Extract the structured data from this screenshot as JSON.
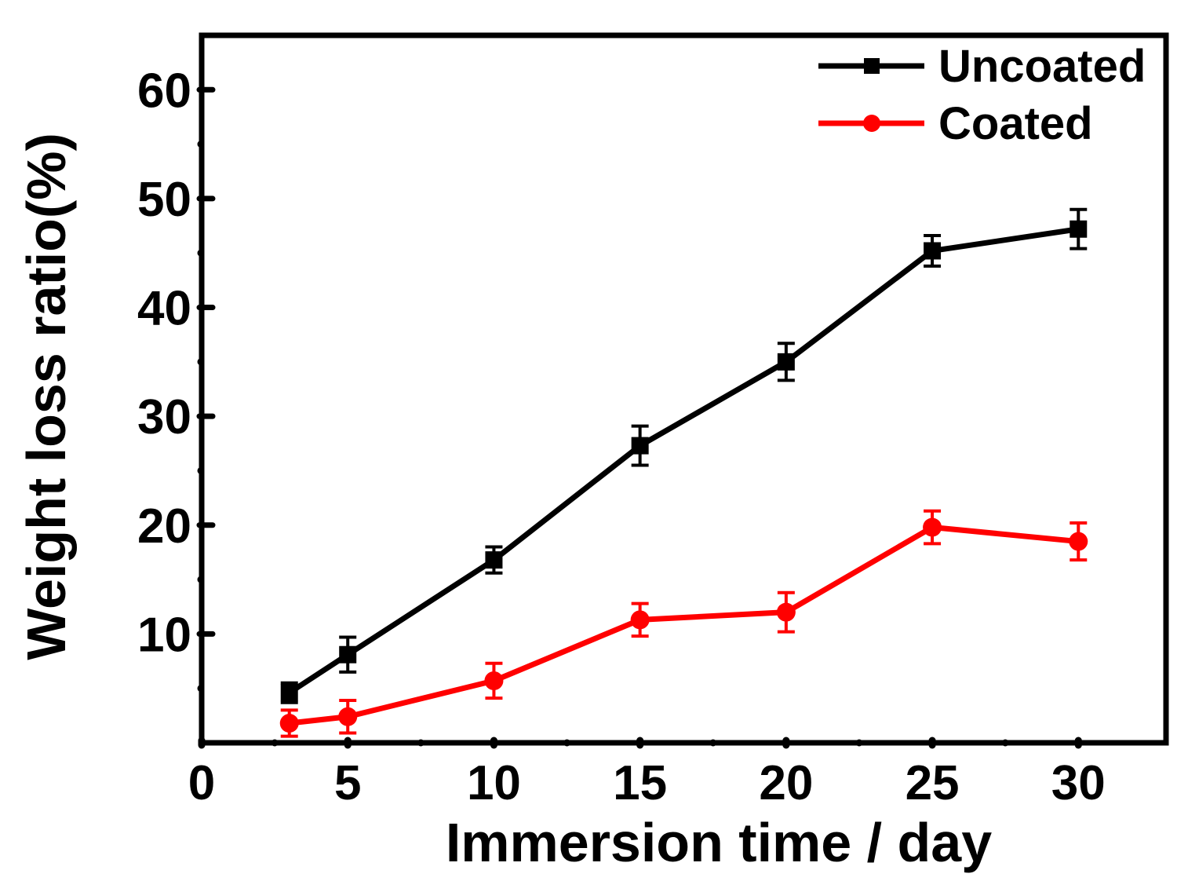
{
  "chart_data": {
    "type": "line",
    "title": "",
    "xlabel": "Immersion time / day",
    "ylabel": "Weight loss ratio(%)",
    "xlim": [
      0,
      33
    ],
    "ylim": [
      0,
      65
    ],
    "x_ticks": [
      0,
      5,
      10,
      15,
      20,
      25,
      30
    ],
    "x_tick_labels": [
      "0",
      "5",
      "10",
      "15",
      "20",
      "25",
      "30"
    ],
    "y_ticks": [
      10,
      20,
      30,
      40,
      50,
      60
    ],
    "y_tick_labels": [
      "10",
      "20",
      "30",
      "40",
      "50",
      "60"
    ],
    "x_minor_ticks": [
      2.5,
      7.5,
      12.5,
      17.5,
      22.5,
      27.5
    ],
    "y_minor_ticks": [
      5,
      15,
      25,
      35,
      45,
      55
    ],
    "legend_position": "top-right",
    "grid": false,
    "x": [
      3,
      5,
      10,
      15,
      20,
      25,
      30
    ],
    "series": [
      {
        "name": "Uncoated",
        "color": "#000000",
        "marker": "square",
        "values": [
          4.6,
          8.1,
          16.8,
          27.3,
          35.0,
          45.2,
          47.2
        ],
        "errors": [
          0.9,
          1.6,
          1.2,
          1.8,
          1.7,
          1.4,
          1.8
        ]
      },
      {
        "name": "Coated",
        "color": "#ff0000",
        "marker": "circle",
        "values": [
          1.8,
          2.4,
          5.7,
          11.3,
          12.0,
          19.8,
          18.5
        ],
        "errors": [
          1.2,
          1.5,
          1.6,
          1.5,
          1.8,
          1.5,
          1.7
        ]
      }
    ]
  }
}
